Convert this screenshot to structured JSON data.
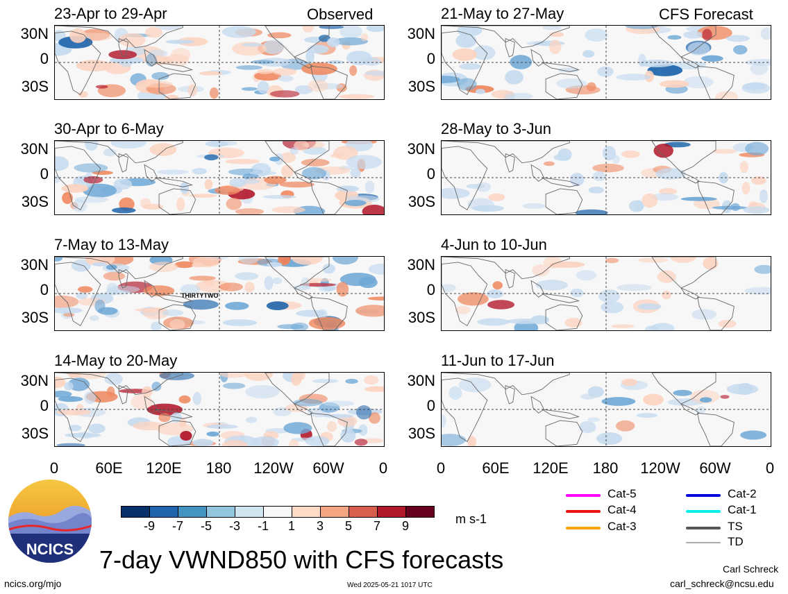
{
  "header": {
    "left_label": "Observed",
    "right_label": "CFS Forecast"
  },
  "colors": {
    "neg_strong": "#2166ac",
    "neg_mid": "#6fa8d6",
    "neg_light": "#c6dbef",
    "pos_light": "#fcd3c0",
    "pos_mid": "#ef8a62",
    "pos_strong": "#b2182b",
    "land_outline": "#666666",
    "map_bg": "#f7f7f7"
  },
  "chart_data": {
    "type": "heatmap",
    "title": "7-day VWND850 with CFS forecasts",
    "variable": "VWND850",
    "units": "m s-1",
    "x_ticks": [
      "0",
      "60E",
      "120E",
      "180",
      "120W",
      "60W",
      "0"
    ],
    "y_ticks": [
      "30N",
      "0",
      "30S"
    ],
    "panels": [
      {
        "label": "23-Apr to 29-Apr",
        "kind": "Observed"
      },
      {
        "label": "30-Apr to 6-May",
        "kind": "Observed"
      },
      {
        "label": "7-May to 13-May",
        "kind": "Observed",
        "annotation": "THIRTYTWO"
      },
      {
        "label": "14-May to 20-May",
        "kind": "Observed"
      },
      {
        "label": "21-May to 27-May",
        "kind": "CFS Forecast"
      },
      {
        "label": "28-May to 3-Jun",
        "kind": "CFS Forecast"
      },
      {
        "label": "4-Jun to 10-Jun",
        "kind": "CFS Forecast"
      },
      {
        "label": "11-Jun to 17-Jun",
        "kind": "CFS Forecast"
      }
    ],
    "colorbar": {
      "labels": [
        "-9",
        "-7",
        "-5",
        "-3",
        "-1",
        "1",
        "3",
        "5",
        "7",
        "9"
      ],
      "colors": [
        "#08306b",
        "#2166ac",
        "#4393c3",
        "#92c5de",
        "#d1e5f0",
        "#f7f7f7",
        "#fddbc7",
        "#f4a582",
        "#d6604d",
        "#b2182b",
        "#67001f"
      ]
    }
  },
  "legend": {
    "items": [
      {
        "label": "Cat-5",
        "color": "#ff00ff"
      },
      {
        "label": "Cat-4",
        "color": "#ee1111"
      },
      {
        "label": "Cat-3",
        "color": "#ffa500"
      },
      {
        "label": "Cat-2",
        "color": "#0000dd"
      },
      {
        "label": "Cat-1",
        "color": "#00eeee"
      },
      {
        "label": "TS",
        "color": "#555555"
      },
      {
        "label": "TD",
        "color": "#aaaaaa"
      }
    ]
  },
  "branding": {
    "logo_text": "NCICS",
    "author": "Carl Schreck",
    "email": "carl_schreck@ncsu.edu",
    "website": "ncics.org/mjo",
    "timestamp": "Wed 2025-05-21 1017 UTC"
  }
}
